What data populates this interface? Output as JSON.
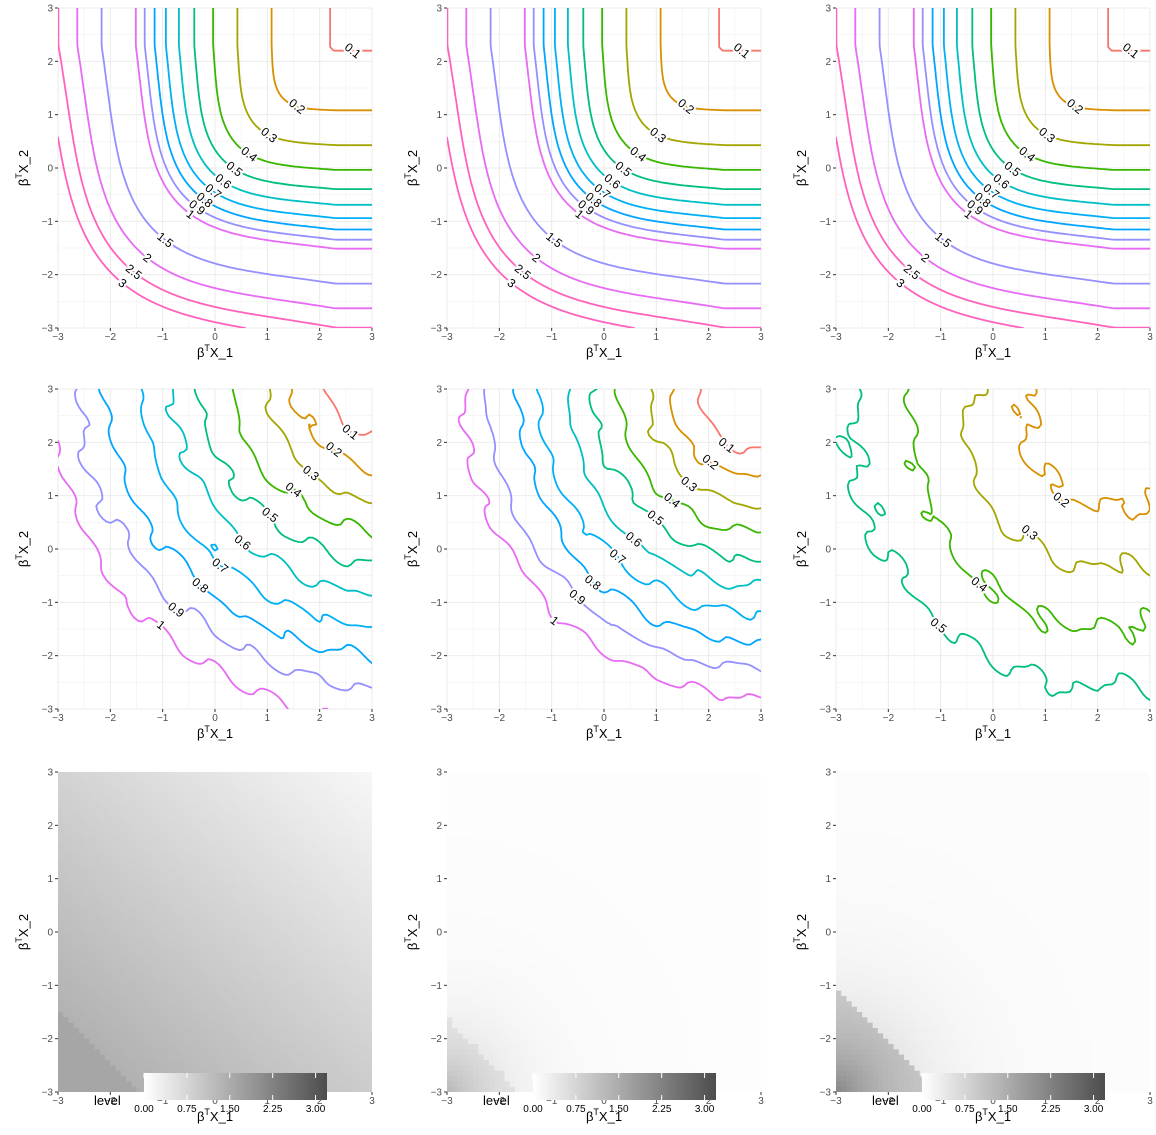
{
  "axis_text": {
    "xlabel_main": "β",
    "xlabel_sup": "T",
    "xlabel_sub": "X_1",
    "ylabel_main": "β",
    "ylabel_sup": "T",
    "ylabel_sub": "X_2",
    "ticks": [
      "−3",
      "−2",
      "−1",
      "0",
      "1",
      "2",
      "3"
    ]
  },
  "colors": {
    "0.1": "#F8766D",
    "0.2": "#D89000",
    "0.3": "#A3A500",
    "0.4": "#39B600",
    "0.5": "#00BF7D",
    "0.6": "#00BFC4",
    "0.7": "#00B0F6",
    "0.8": "#00A5FF",
    "0.9": "#9590FF",
    "1": "#E76BF3",
    "1.5": "#9590FF",
    "2": "#E76BF3",
    "2.5": "#FF62BC",
    "3": "#FF62BC"
  },
  "chart_data": [
    {
      "type": "contour",
      "row": 1,
      "col": 1,
      "variant": "exact",
      "xlim": [
        -3,
        3
      ],
      "ylim": [
        -3,
        3
      ],
      "levels": [
        0.1,
        0.2,
        0.3,
        0.4,
        0.5,
        0.6,
        0.7,
        0.8,
        0.9,
        1,
        1.5,
        2,
        2.5,
        3
      ],
      "level_labels": [
        "0.1",
        "0.2",
        "0.3",
        "0.4",
        "0.5",
        "0.6",
        "0.7",
        "0.8",
        "0.9",
        "1",
        "1.5",
        "2",
        "2.5",
        "3"
      ]
    },
    {
      "type": "contour",
      "row": 1,
      "col": 2,
      "variant": "exact",
      "xlim": [
        -3,
        3
      ],
      "ylim": [
        -3,
        3
      ],
      "levels": [
        0.1,
        0.2,
        0.3,
        0.4,
        0.5,
        0.6,
        0.7,
        0.8,
        0.9,
        1,
        1.5,
        2,
        2.5,
        3
      ],
      "level_labels": [
        "0.1",
        "0.2",
        "0.3",
        "0.4",
        "0.5",
        "0.6",
        "0.7",
        "0.8",
        "0.9",
        "1",
        "1.5",
        "2",
        "2.5",
        "3"
      ]
    },
    {
      "type": "contour",
      "row": 1,
      "col": 3,
      "variant": "exact",
      "xlim": [
        -3,
        3
      ],
      "ylim": [
        -3,
        3
      ],
      "levels": [
        0.1,
        0.2,
        0.3,
        0.4,
        0.5,
        0.6,
        0.7,
        0.8,
        0.9,
        1,
        1.5,
        2,
        2.5,
        3
      ],
      "level_labels": [
        "0.1",
        "0.2",
        "0.3",
        "0.4",
        "0.5",
        "0.6",
        "0.7",
        "0.8",
        "0.9",
        "1",
        "1.5",
        "2",
        "2.5",
        "3"
      ]
    },
    {
      "type": "contour",
      "row": 2,
      "col": 1,
      "variant": "estimated",
      "xlim": [
        -3,
        3
      ],
      "ylim": [
        -3,
        3
      ],
      "levels": [
        0.1,
        0.2,
        0.3,
        0.4,
        0.5,
        0.6,
        0.7,
        0.8,
        0.9,
        1
      ],
      "level_labels": [
        "0.1",
        "0.2",
        "0.3",
        "0.4",
        "0.5",
        "0.6",
        "0.7",
        "0.8",
        "0.9",
        "1"
      ]
    },
    {
      "type": "contour",
      "row": 2,
      "col": 2,
      "variant": "estimated",
      "xlim": [
        -3,
        3
      ],
      "ylim": [
        -3,
        3
      ],
      "levels": [
        0.1,
        0.2,
        0.3,
        0.4,
        0.5,
        0.6,
        0.7,
        0.8,
        0.9,
        1
      ],
      "level_labels": [
        "0.1",
        "0.2",
        "0.3",
        "0.4",
        "0.5",
        "0.6",
        "0.7",
        "0.8",
        "0.9",
        "1"
      ]
    },
    {
      "type": "contour",
      "row": 2,
      "col": 3,
      "variant": "estimated",
      "xlim": [
        -3,
        3
      ],
      "ylim": [
        -3,
        3
      ],
      "levels": [
        0.2,
        0.3,
        0.4,
        0.5,
        0.6
      ],
      "level_labels": [
        "0.2",
        "0.3",
        "0.4",
        "0.5",
        "0.6"
      ]
    },
    {
      "type": "heatmap",
      "row": 3,
      "col": 1,
      "xlim": [
        -3,
        3
      ],
      "ylim": [
        -3,
        3
      ],
      "max_level": 1.5
    },
    {
      "type": "heatmap",
      "row": 3,
      "col": 2,
      "xlim": [
        -3,
        3
      ],
      "ylim": [
        -3,
        3
      ],
      "max_level": 1.1
    },
    {
      "type": "heatmap",
      "row": 3,
      "col": 3,
      "xlim": [
        -3,
        3
      ],
      "ylim": [
        -3,
        3
      ],
      "max_level": 2.4
    }
  ],
  "legends": [
    {
      "title": "level",
      "range": [
        0,
        3.2
      ],
      "ticks": [
        "0.00",
        "0.75",
        "1.50",
        "2.25",
        "3.00"
      ],
      "tick_values": [
        0,
        0.75,
        1.5,
        2.25,
        3
      ]
    },
    {
      "title": "level",
      "range": [
        0,
        3.2
      ],
      "ticks": [
        "0.00",
        "0.75",
        "1.50",
        "2.25",
        "3.00"
      ],
      "tick_values": [
        0,
        0.75,
        1.5,
        2.25,
        3
      ]
    },
    {
      "title": "level",
      "range": [
        0,
        3.2
      ],
      "ticks": [
        "0.00",
        "0.75",
        "1.50",
        "2.25",
        "3.00"
      ],
      "tick_values": [
        0,
        0.75,
        1.5,
        2.25,
        3
      ]
    }
  ]
}
